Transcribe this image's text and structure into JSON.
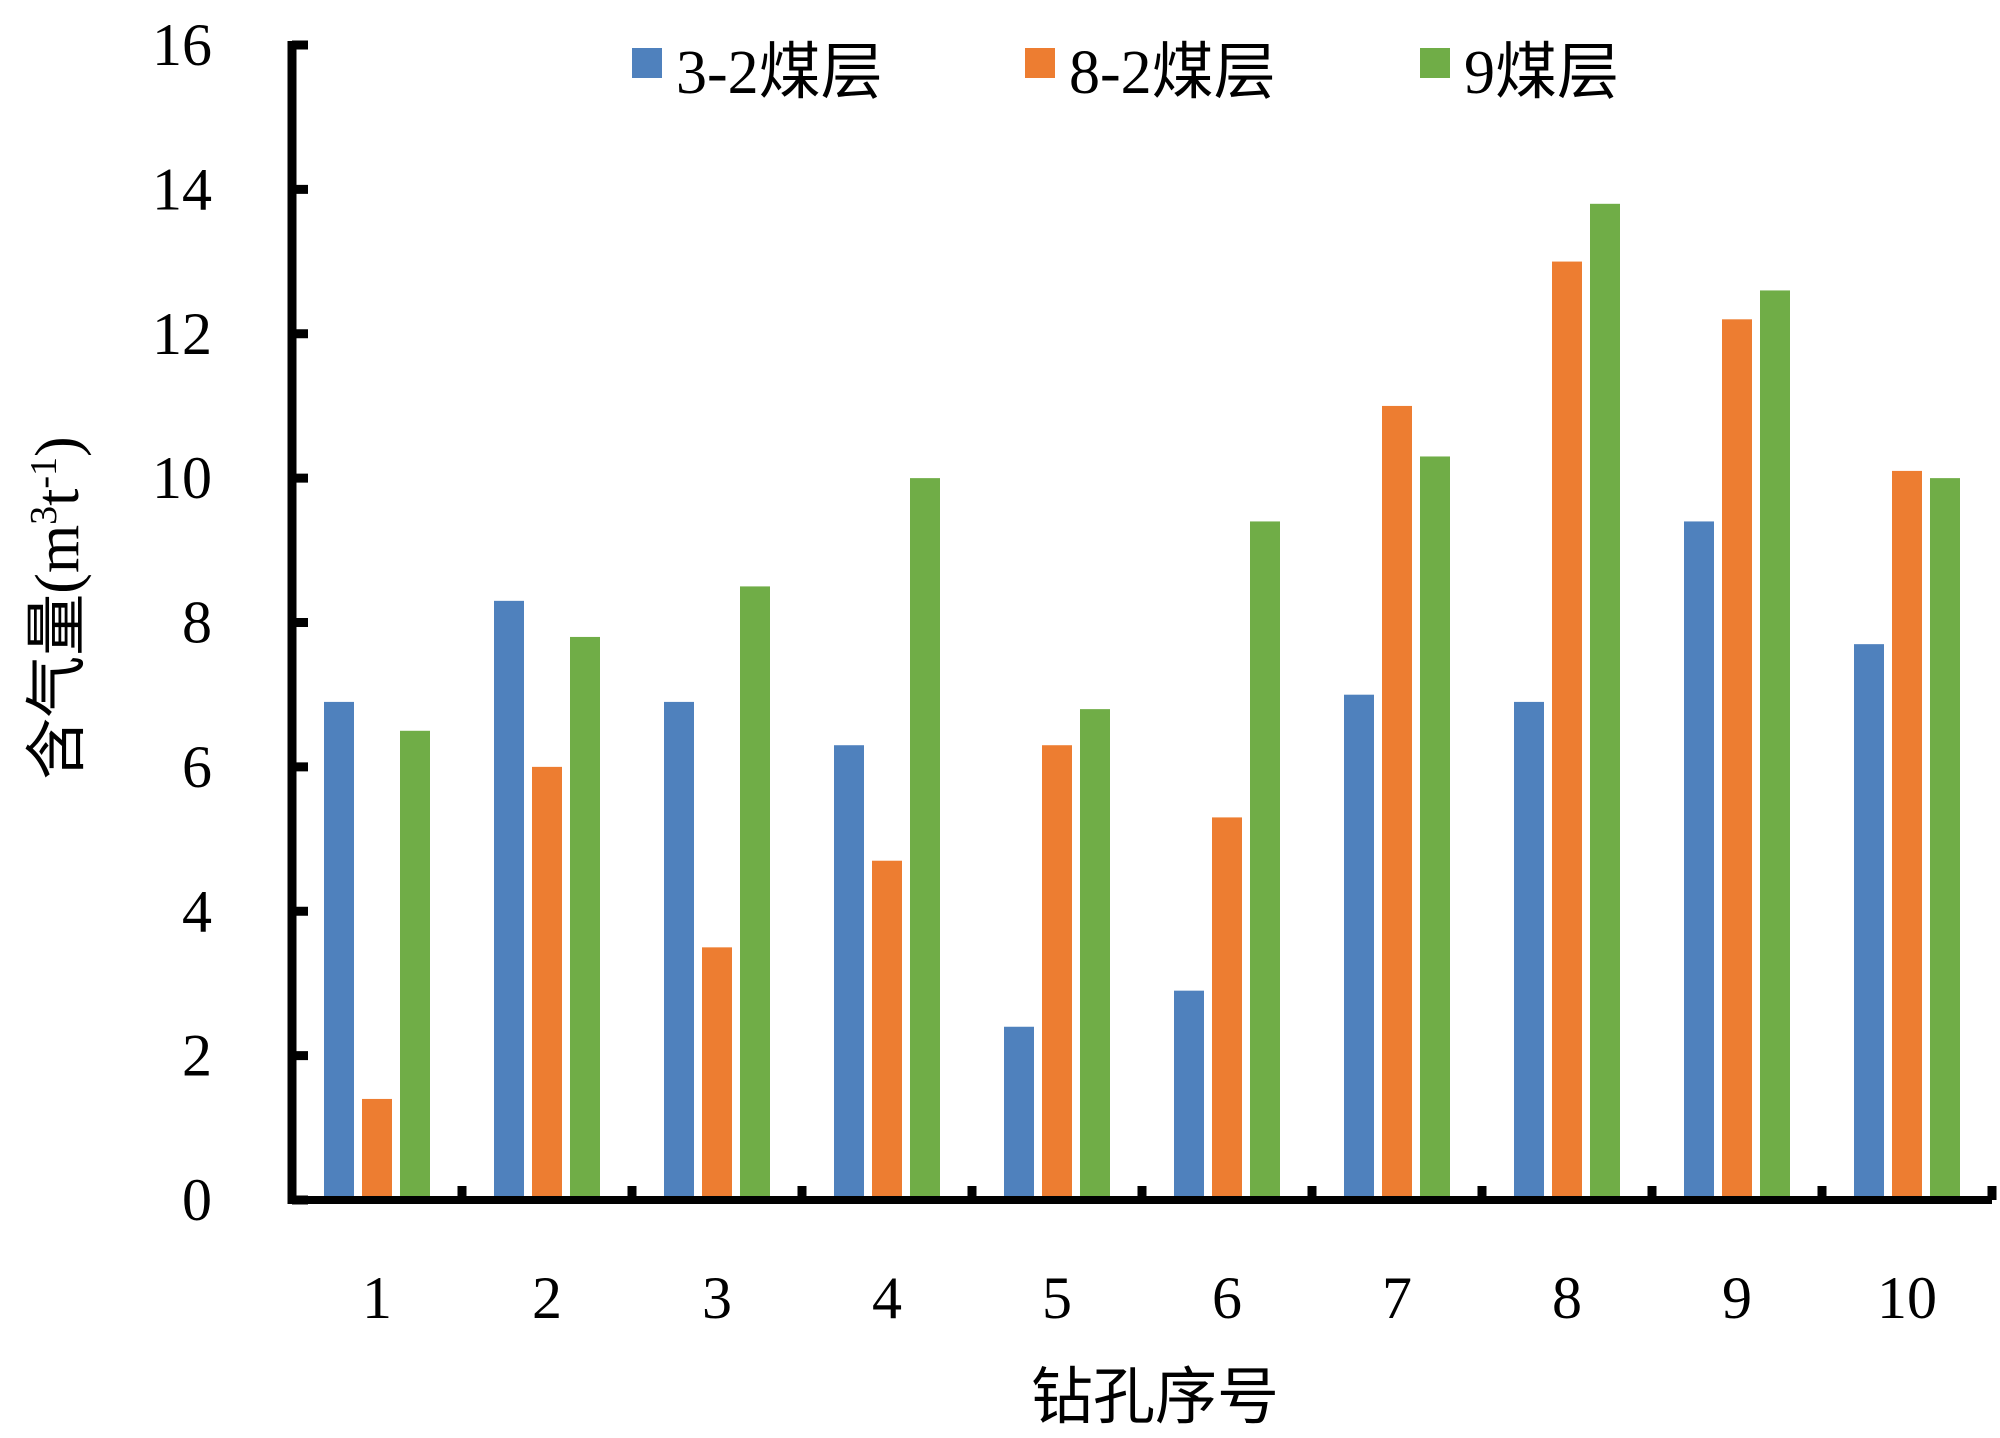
{
  "chart_data": {
    "type": "bar",
    "title": "",
    "xlabel": "钻孔序号",
    "ylabel_main": "含气量(m",
    "ylabel_sup1": "3",
    "ylabel_mid": "t",
    "ylabel_sup2": "-1",
    "ylabel_end": ")",
    "ylim": [
      0,
      16
    ],
    "yticks": [
      0,
      2,
      4,
      6,
      8,
      10,
      12,
      14,
      16
    ],
    "categories": [
      "1",
      "2",
      "3",
      "4",
      "5",
      "6",
      "7",
      "8",
      "9",
      "10"
    ],
    "grid": false,
    "legend_position": "top",
    "series": [
      {
        "name": "3-2煤层",
        "color": "#4f81bd",
        "values": [
          6.9,
          8.3,
          6.9,
          6.3,
          2.4,
          2.9,
          7.0,
          6.9,
          9.4,
          7.7
        ]
      },
      {
        "name": "8-2煤层",
        "color": "#ed7d31",
        "values": [
          1.4,
          6.0,
          3.5,
          4.7,
          6.3,
          5.3,
          11.0,
          13.0,
          12.2,
          10.1
        ]
      },
      {
        "name": "9煤层",
        "color": "#70ad47",
        "values": [
          6.5,
          7.8,
          8.5,
          10.0,
          6.8,
          9.4,
          10.3,
          13.8,
          12.6,
          10.0
        ]
      }
    ]
  }
}
